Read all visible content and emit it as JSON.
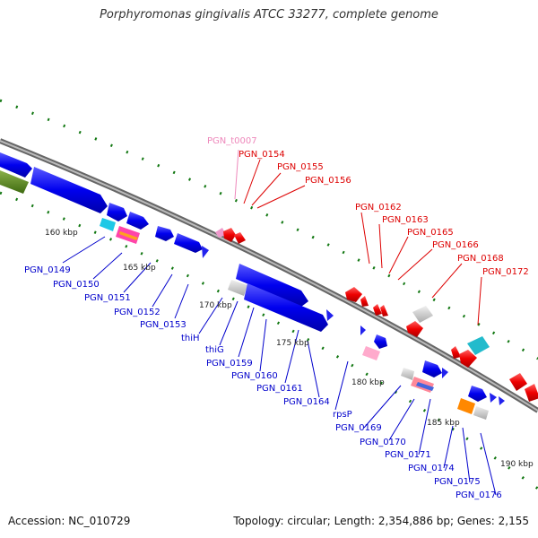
{
  "title": "Porphyromonas gingivalis ATCC 33277, complete genome",
  "footer": {
    "accession": "Accession: NC_010729",
    "summary": "Topology: circular; Length: 2,354,886 bp; Genes: 2,155"
  },
  "scale": [
    "160 kbp",
    "165 kbp",
    "170 kbp",
    "175 kbp",
    "180 kbp",
    "185 kbp",
    "190 kbp"
  ],
  "labels_top": [
    {
      "text": "PGN_t0007",
      "color": "#ee88bb"
    },
    {
      "text": "PGN_0154",
      "color": "#dd0000"
    },
    {
      "text": "PGN_0155",
      "color": "#dd0000"
    },
    {
      "text": "PGN_0156",
      "color": "#dd0000"
    },
    {
      "text": "PGN_0162",
      "color": "#dd0000"
    },
    {
      "text": "PGN_0163",
      "color": "#dd0000"
    },
    {
      "text": "PGN_0165",
      "color": "#dd0000"
    },
    {
      "text": "PGN_0166",
      "color": "#dd0000"
    },
    {
      "text": "PGN_0168",
      "color": "#dd0000"
    },
    {
      "text": "PGN_0172",
      "color": "#dd0000"
    }
  ],
  "labels_bottom": [
    {
      "text": "PGN_0149",
      "color": "#0000cc"
    },
    {
      "text": "PGN_0150",
      "color": "#0000cc"
    },
    {
      "text": "PGN_0151",
      "color": "#0000cc"
    },
    {
      "text": "PGN_0152",
      "color": "#0000cc"
    },
    {
      "text": "PGN_0153",
      "color": "#0000cc"
    },
    {
      "text": "thiH",
      "color": "#0000cc"
    },
    {
      "text": "thiG",
      "color": "#0000cc"
    },
    {
      "text": "PGN_0159",
      "color": "#0000cc"
    },
    {
      "text": "PGN_0160",
      "color": "#0000cc"
    },
    {
      "text": "PGN_0161",
      "color": "#0000cc"
    },
    {
      "text": "PGN_0164",
      "color": "#0000cc"
    },
    {
      "text": "rpsP",
      "color": "#0000cc"
    },
    {
      "text": "PGN_0169",
      "color": "#0000cc"
    },
    {
      "text": "PGN_0170",
      "color": "#0000cc"
    },
    {
      "text": "PGN_0171",
      "color": "#0000cc"
    },
    {
      "text": "PGN_0174",
      "color": "#0000cc"
    },
    {
      "text": "PGN_0175",
      "color": "#0000cc"
    },
    {
      "text": "PGN_0176",
      "color": "#0000cc"
    }
  ],
  "colors": {
    "forward_gene": "#dd0000",
    "reverse_gene": "#0000dd",
    "trna": "#ee88bb",
    "backbone": "#888888",
    "tick": "#117711"
  }
}
